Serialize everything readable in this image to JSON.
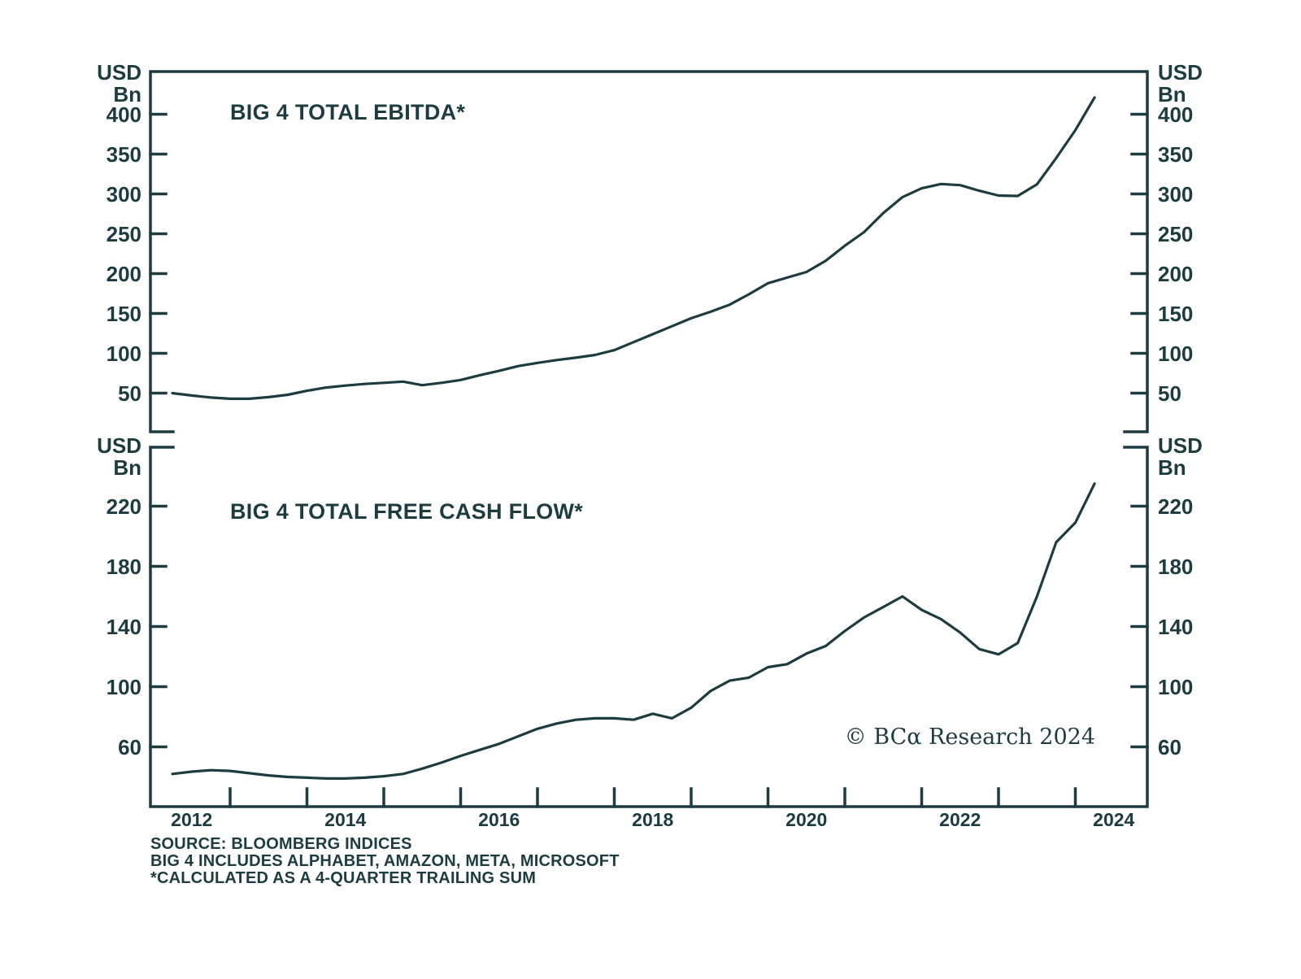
{
  "colors": {
    "ink": "#1d3c40",
    "background": "#ffffff"
  },
  "watermark": "© BCα Research 2024",
  "footer": {
    "lines": [
      "SOURCE: BLOOMBERG INDICES",
      "BIG 4 INCLUDES ALPHABET, AMAZON, META, MICROSOFT",
      "*CALCULATED AS A 4-QUARTER TRAILING SUM"
    ]
  },
  "x_axis": {
    "start": 2012,
    "end": 2024.7,
    "tick_years": [
      2013,
      2014,
      2015,
      2016,
      2017,
      2018,
      2019,
      2020,
      2021,
      2022,
      2023,
      2024
    ],
    "year_labels": [
      "2012",
      "2014",
      "2016",
      "2018",
      "2020",
      "2022",
      "2024"
    ],
    "year_label_positions": [
      2012.5,
      2014.5,
      2016.5,
      2018.5,
      2020.5,
      2022.5,
      2024.5
    ]
  },
  "chart_data": [
    {
      "type": "line",
      "title": "BIG 4 TOTAL EBITDA*",
      "ylabel": "USD Bn",
      "legend_position": "none",
      "grid": false,
      "y_ticks": [
        400,
        350,
        300,
        250,
        200,
        150,
        100,
        50
      ],
      "ylim": [
        2,
        454
      ],
      "xlim": [
        2012,
        2024.7
      ],
      "x": [
        2012.25,
        2012.5,
        2012.75,
        2013,
        2013.25,
        2013.5,
        2013.75,
        2014,
        2014.25,
        2014.5,
        2014.75,
        2015,
        2015.25,
        2015.5,
        2015.75,
        2016,
        2016.25,
        2016.5,
        2016.75,
        2017,
        2017.25,
        2017.5,
        2017.75,
        2018,
        2018.25,
        2018.5,
        2018.75,
        2019,
        2019.25,
        2019.5,
        2019.75,
        2020,
        2020.25,
        2020.5,
        2020.75,
        2021,
        2021.25,
        2021.5,
        2021.75,
        2022,
        2022.25,
        2022.5,
        2022.75,
        2023,
        2023.25,
        2023.5,
        2023.75,
        2024,
        2024.25
      ],
      "values": [
        50,
        47,
        44.5,
        43,
        43,
        45,
        48,
        53,
        57,
        59.5,
        61.5,
        63,
        64.5,
        60,
        63,
        66.5,
        72.5,
        78,
        84,
        88,
        91.5,
        94.5,
        98,
        104,
        114,
        124,
        134,
        144,
        152,
        161,
        174,
        188,
        195,
        202,
        216,
        235,
        252,
        276,
        296,
        307,
        312.5,
        311,
        304,
        298,
        297.5,
        312,
        345,
        380,
        421
      ]
    },
    {
      "type": "line",
      "title": "BIG 4 TOTAL FREE CASH FLOW*",
      "ylabel": "USD Bn",
      "legend_position": "none",
      "grid": false,
      "y_ticks": [
        220,
        180,
        140,
        100,
        60
      ],
      "ylim": [
        20,
        259
      ],
      "xlim": [
        2012,
        2024.7
      ],
      "x": [
        2012.25,
        2012.5,
        2012.75,
        2013,
        2013.25,
        2013.5,
        2013.75,
        2014,
        2014.25,
        2014.5,
        2014.75,
        2015,
        2015.25,
        2015.5,
        2015.75,
        2016,
        2016.25,
        2016.5,
        2016.75,
        2017,
        2017.25,
        2017.5,
        2017.75,
        2018,
        2018.25,
        2018.5,
        2018.75,
        2019,
        2019.25,
        2019.5,
        2019.75,
        2020,
        2020.25,
        2020.5,
        2020.75,
        2021,
        2021.25,
        2021.5,
        2021.75,
        2022,
        2022.25,
        2022.5,
        2022.75,
        2023,
        2023.25,
        2023.5,
        2023.75,
        2024,
        2024.25
      ],
      "values": [
        42,
        43.5,
        44.5,
        44,
        42.5,
        41,
        40,
        39.5,
        39,
        39,
        39.5,
        40.5,
        42,
        45.5,
        49.5,
        54,
        58,
        62,
        67,
        72,
        75.5,
        78,
        79,
        79,
        78,
        82,
        79,
        86,
        97,
        104,
        106,
        113,
        115,
        122,
        127,
        137,
        146,
        153,
        160,
        151,
        145,
        136,
        125,
        121.5,
        129,
        160,
        196,
        209,
        235
      ]
    }
  ]
}
